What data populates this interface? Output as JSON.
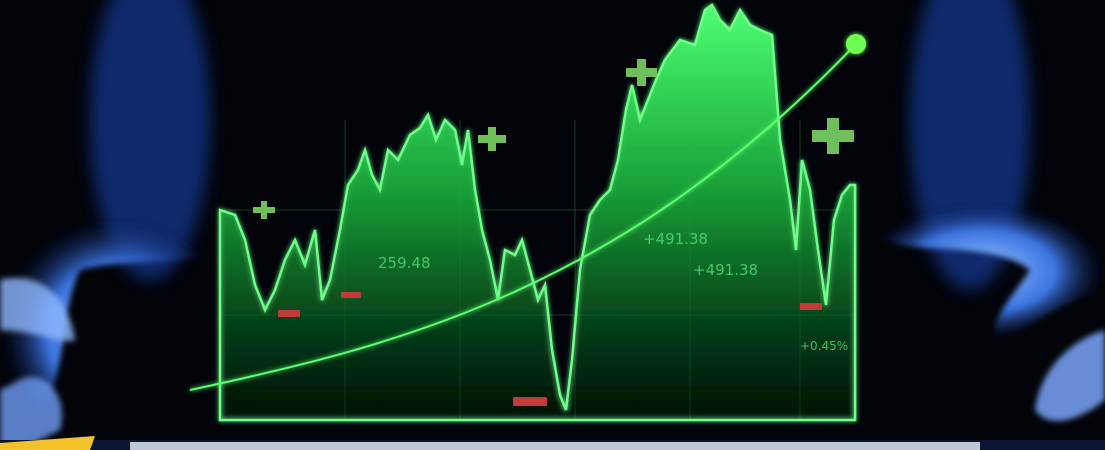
{
  "overlay_labels": [
    "259.48",
    "+491.38",
    "+491.38",
    "+0.45%"
  ]
}
